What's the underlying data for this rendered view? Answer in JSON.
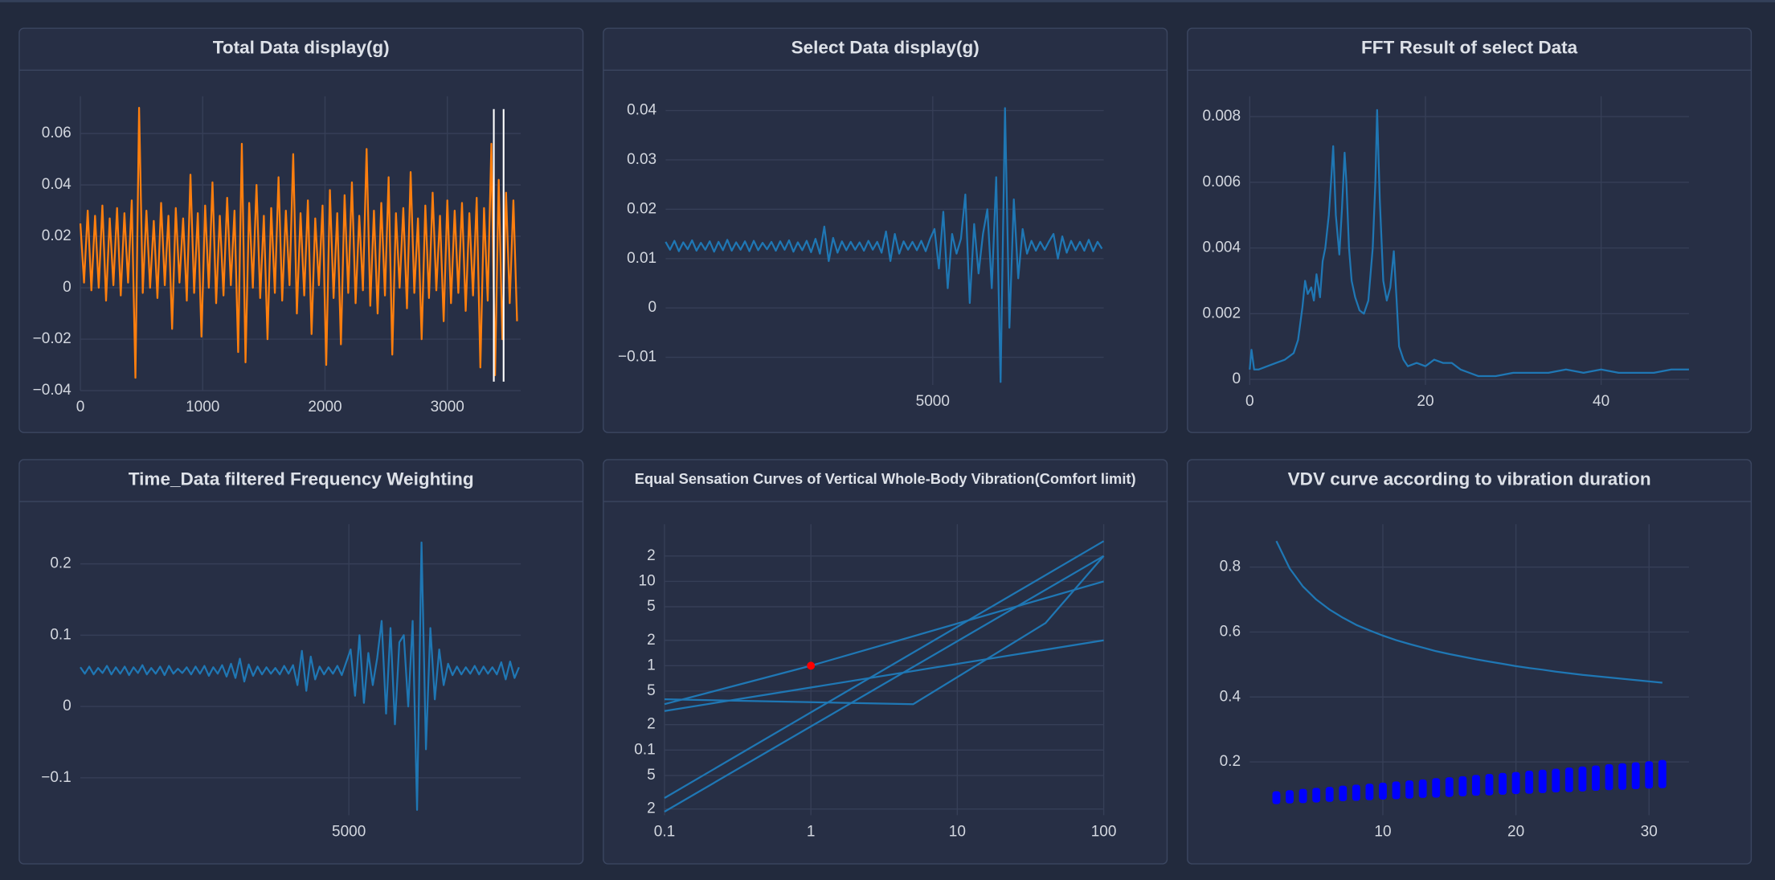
{
  "chart_data": [
    {
      "type": "line",
      "title": "Total Data display(g)",
      "grid": true,
      "xlim": [
        0,
        3600
      ],
      "xticks": [
        0,
        1000,
        2000,
        3000
      ],
      "ylim": [
        -0.04,
        0.0745
      ],
      "yticks": [
        {
          "value": -0.04,
          "label": "−0.04"
        },
        {
          "value": -0.02,
          "label": "−0.02"
        },
        0,
        0.02,
        0.04,
        0.06
      ],
      "series": [
        {
          "color": "#ff7f0e",
          "x0": 0,
          "dx": 30,
          "values": [
            0.025,
            0.002,
            0.03,
            -0.001,
            0.028,
            0.0,
            0.032,
            -0.005,
            0.027,
            0.001,
            0.031,
            -0.003,
            0.029,
            0.002,
            0.034,
            -0.035,
            0.07,
            -0.002,
            0.03,
            0.0,
            0.026,
            -0.004,
            0.033,
            0.001,
            0.028,
            -0.016,
            0.031,
            0.002,
            0.027,
            -0.005,
            0.044,
            -0.002,
            0.029,
            -0.019,
            0.032,
            0.0,
            0.041,
            -0.006,
            0.028,
            -0.003,
            0.035,
            0.001,
            0.03,
            -0.025,
            0.056,
            -0.029,
            0.033,
            0.0,
            0.04,
            -0.004,
            0.028,
            -0.02,
            0.031,
            -0.002,
            0.043,
            -0.005,
            0.03,
            0.001,
            0.052,
            -0.01,
            0.029,
            -0.003,
            0.034,
            -0.018,
            0.027,
            0.001,
            0.032,
            -0.03,
            0.038,
            -0.004,
            0.029,
            -0.022,
            0.036,
            -0.002,
            0.041,
            -0.006,
            0.028,
            -0.001,
            0.054,
            -0.007,
            0.03,
            -0.01,
            0.033,
            -0.003,
            0.043,
            -0.026,
            0.029,
            0.0,
            0.031,
            -0.008,
            0.045,
            -0.002,
            0.027,
            -0.02,
            0.032,
            -0.004,
            0.037,
            -0.001,
            0.028,
            -0.013,
            0.034,
            -0.006,
            0.03,
            -0.002,
            0.033,
            -0.009,
            0.029,
            -0.003,
            0.035,
            -0.031,
            0.031,
            -0.005,
            0.056,
            -0.034,
            0.042,
            -0.02,
            0.037,
            -0.006,
            0.034,
            -0.013
          ]
        }
      ],
      "shapes": [
        {
          "color": "#ffffff",
          "x": 3380,
          "y0": -0.0365,
          "y1": 0.0695
        },
        {
          "color": "#ffffff",
          "x": 3460,
          "y0": -0.0365,
          "y1": 0.0695
        }
      ]
    },
    {
      "type": "line",
      "title": "Select Data display(g)",
      "grid": true,
      "xlim": [
        1000,
        7560
      ],
      "xticks": [
        5000
      ],
      "ylim": [
        -0.0156,
        0.0429
      ],
      "yticks": [
        {
          "value": -0.01,
          "label": "−0.01"
        },
        0,
        0.01,
        0.02,
        0.03,
        0.04
      ],
      "series": [
        {
          "color": "#1f77b4",
          "x0": 1000,
          "dx": 66,
          "values": [
            0.0134,
            0.0118,
            0.0136,
            0.0115,
            0.0133,
            0.0119,
            0.0137,
            0.0116,
            0.0132,
            0.0118,
            0.0135,
            0.0114,
            0.0134,
            0.0117,
            0.0138,
            0.0116,
            0.0133,
            0.0118,
            0.0135,
            0.0115,
            0.0136,
            0.0117,
            0.0132,
            0.0119,
            0.0134,
            0.0116,
            0.0135,
            0.0118,
            0.0137,
            0.0114,
            0.0133,
            0.0117,
            0.0136,
            0.0113,
            0.014,
            0.011,
            0.0165,
            0.0095,
            0.0142,
            0.0112,
            0.0135,
            0.0117,
            0.0134,
            0.0118,
            0.0133,
            0.0116,
            0.0136,
            0.0118,
            0.0134,
            0.0112,
            0.0155,
            0.0095,
            0.015,
            0.011,
            0.0135,
            0.0118,
            0.0134,
            0.0117,
            0.0136,
            0.0115,
            0.014,
            0.016,
            0.008,
            0.0195,
            0.004,
            0.015,
            0.011,
            0.014,
            0.023,
            0.001,
            0.017,
            0.007,
            0.015,
            0.02,
            0.004,
            0.0265,
            -0.015,
            0.0405,
            -0.004,
            0.022,
            0.006,
            0.016,
            0.011,
            0.0136,
            0.0116,
            0.0134,
            0.0118,
            0.0135,
            0.015,
            0.01,
            0.0145,
            0.0112,
            0.0136,
            0.0117,
            0.0134,
            0.0116,
            0.0138,
            0.0115,
            0.0134,
            0.012
          ]
        }
      ]
    },
    {
      "type": "line",
      "title": "FFT Result of select Data",
      "grid": true,
      "xlim": [
        0,
        50
      ],
      "xticks": [
        0,
        20,
        40
      ],
      "ylim": [
        -0.00017,
        0.00862
      ],
      "yticks": [
        0,
        0.002,
        0.004,
        0.006,
        0.008
      ],
      "series": [
        {
          "color": "#1f77b4",
          "x": [
            0,
            0.2,
            0.5,
            1,
            2,
            3,
            4,
            5,
            5.5,
            6,
            6.3,
            6.6,
            7,
            7.3,
            7.6,
            8,
            8.3,
            8.6,
            9,
            9.3,
            9.5,
            9.8,
            10.2,
            10.5,
            10.8,
            11,
            11.3,
            11.6,
            12,
            12.5,
            13,
            13.5,
            14,
            14.3,
            14.5,
            14.8,
            15.2,
            15.6,
            16,
            16.4,
            16.7,
            17,
            17.5,
            18,
            19,
            20,
            21,
            22,
            23,
            24,
            25,
            26,
            28,
            30,
            32,
            34,
            36,
            38,
            40,
            42,
            44,
            46,
            48,
            50
          ],
          "values": [
            0.0003,
            0.0009,
            0.0003,
            0.0003,
            0.0004,
            0.0005,
            0.0006,
            0.0008,
            0.0012,
            0.0022,
            0.003,
            0.0026,
            0.0028,
            0.0024,
            0.0032,
            0.0025,
            0.0036,
            0.004,
            0.005,
            0.0062,
            0.0071,
            0.005,
            0.0038,
            0.0052,
            0.0069,
            0.006,
            0.004,
            0.003,
            0.0025,
            0.0021,
            0.002,
            0.0024,
            0.004,
            0.006,
            0.0082,
            0.0055,
            0.003,
            0.0024,
            0.0028,
            0.0039,
            0.0025,
            0.001,
            0.0006,
            0.0004,
            0.0005,
            0.0004,
            0.0006,
            0.0005,
            0.0005,
            0.0003,
            0.0002,
            0.0001,
            0.0001,
            0.0002,
            0.0002,
            0.0002,
            0.0003,
            0.0002,
            0.0003,
            0.0002,
            0.0002,
            0.0002,
            0.0003,
            0.0003
          ]
        }
      ]
    },
    {
      "type": "line",
      "title": "Time_Data filtered Frequency Weighting",
      "grid": true,
      "xlim": [
        1000,
        7560
      ],
      "xticks": [
        5000
      ],
      "ylim": [
        -0.1524,
        0.2556
      ],
      "yticks": [
        {
          "value": -0.1,
          "label": "−0.1"
        },
        0,
        0.1,
        0.2
      ],
      "series": [
        {
          "color": "#1f77b4",
          "x0": 1000,
          "dx": 66,
          "values": [
            0.055,
            0.046,
            0.056,
            0.045,
            0.054,
            0.047,
            0.057,
            0.045,
            0.055,
            0.046,
            0.056,
            0.044,
            0.055,
            0.047,
            0.058,
            0.045,
            0.054,
            0.046,
            0.056,
            0.044,
            0.057,
            0.046,
            0.053,
            0.047,
            0.055,
            0.045,
            0.056,
            0.046,
            0.057,
            0.043,
            0.055,
            0.046,
            0.058,
            0.042,
            0.06,
            0.04,
            0.067,
            0.035,
            0.059,
            0.043,
            0.056,
            0.045,
            0.055,
            0.046,
            0.054,
            0.045,
            0.057,
            0.046,
            0.058,
            0.03,
            0.078,
            0.022,
            0.07,
            0.038,
            0.056,
            0.045,
            0.055,
            0.046,
            0.057,
            0.044,
            0.062,
            0.08,
            0.015,
            0.1,
            0.005,
            0.075,
            0.03,
            0.068,
            0.12,
            -0.01,
            0.11,
            -0.025,
            0.09,
            0.1,
            0.0,
            0.12,
            -0.145,
            0.23,
            -0.06,
            0.11,
            0.01,
            0.08,
            0.03,
            0.06,
            0.044,
            0.056,
            0.045,
            0.055,
            0.046,
            0.057,
            0.045,
            0.056,
            0.046,
            0.055,
            0.045,
            0.062,
            0.038,
            0.063,
            0.04,
            0.055
          ]
        }
      ]
    },
    {
      "type": "line",
      "title": "Equal Sensation Curves of Vertical Whole-Body Vibration(Comfort limit)",
      "grid": true,
      "xlog": true,
      "ylog": true,
      "xlim": [
        0.1,
        100
      ],
      "xticks": [
        0.1,
        1,
        10,
        100
      ],
      "ylim": [
        0.0169,
        47.6
      ],
      "yticks": [
        {
          "value": 0.02,
          "label": "2"
        },
        {
          "value": 0.05,
          "label": "5"
        },
        0.1,
        {
          "value": 0.2,
          "label": "2"
        },
        {
          "value": 0.5,
          "label": "5"
        },
        1,
        2,
        5,
        10,
        {
          "value": 20,
          "label": "2"
        }
      ],
      "series": [
        {
          "color": "#1f77b4",
          "x": [
            0.1,
            1,
            100
          ],
          "values": [
            0.35,
            1,
            10
          ]
        },
        {
          "color": "#1f77b4",
          "x": [
            0.1,
            100
          ],
          "values": [
            0.29,
            2
          ]
        },
        {
          "color": "#1f77b4",
          "x": [
            0.1,
            5,
            40,
            100
          ],
          "values": [
            0.4,
            0.35,
            3.2,
            20
          ]
        },
        {
          "color": "#1f77b4",
          "x": [
            0.1,
            100
          ],
          "values": [
            0.027,
            30
          ]
        },
        {
          "color": "#1f77b4",
          "x": [
            0.1,
            100
          ],
          "values": [
            0.0186,
            20
          ]
        },
        {
          "color": "#ff0000",
          "mode": "markers",
          "x": [
            1
          ],
          "values": [
            1
          ]
        }
      ]
    },
    {
      "type": "line",
      "title": "VDV curve according to vibration duration",
      "grid": true,
      "xlim": [
        0,
        33
      ],
      "xticks": [
        10,
        20,
        30
      ],
      "ylim": [
        0.036,
        0.932
      ],
      "yticks": [
        0.2,
        0.4,
        0.6,
        0.8
      ],
      "series": [
        {
          "color": "#1f77b4",
          "x": [
            2,
            3,
            4,
            5,
            6,
            7,
            8,
            9,
            10,
            11,
            12,
            13,
            14,
            15,
            16,
            17,
            18,
            19,
            20,
            21,
            22,
            23,
            24,
            25,
            26,
            27,
            28,
            29,
            30,
            31
          ],
          "values": [
            0.88,
            0.796,
            0.74,
            0.7,
            0.669,
            0.644,
            0.622,
            0.605,
            0.589,
            0.575,
            0.563,
            0.552,
            0.541,
            0.532,
            0.524,
            0.516,
            0.509,
            0.502,
            0.495,
            0.489,
            0.484,
            0.478,
            0.473,
            0.468,
            0.464,
            0.46,
            0.456,
            0.452,
            0.448,
            0.444
          ]
        }
      ],
      "bars": {
        "color": "#0000ff",
        "x": [
          2,
          3,
          4,
          5,
          6,
          7,
          8,
          9,
          10,
          11,
          12,
          13,
          14,
          15,
          16,
          17,
          18,
          19,
          20,
          21,
          22,
          23,
          24,
          25,
          26,
          27,
          28,
          29,
          30,
          31
        ],
        "low": [
          0.07,
          0.072,
          0.073,
          0.075,
          0.077,
          0.079,
          0.08,
          0.082,
          0.084,
          0.085,
          0.087,
          0.089,
          0.09,
          0.092,
          0.094,
          0.096,
          0.097,
          0.099,
          0.101,
          0.102,
          0.104,
          0.106,
          0.107,
          0.109,
          0.111,
          0.113,
          0.114,
          0.116,
          0.118,
          0.119
        ],
        "high": [
          0.11,
          0.113,
          0.117,
          0.12,
          0.123,
          0.127,
          0.13,
          0.133,
          0.136,
          0.14,
          0.143,
          0.146,
          0.15,
          0.153,
          0.156,
          0.16,
          0.163,
          0.166,
          0.169,
          0.173,
          0.176,
          0.179,
          0.183,
          0.186,
          0.189,
          0.193,
          0.196,
          0.199,
          0.202,
          0.206
        ]
      }
    }
  ]
}
